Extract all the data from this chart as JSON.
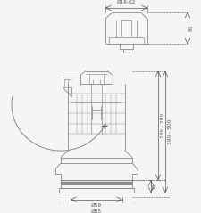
{
  "bg_color": "#f5f5f5",
  "line_color": "#888888",
  "dim_color": "#555555",
  "title": "",
  "annotations": {
    "dia_top": "Ø16-62",
    "dim_top_h": "80",
    "dim_mid_h": "236 - 280",
    "dim_total_h": "390 - 500",
    "dim_bot_h": "30",
    "dia_inner": "Ø59",
    "dia_outer": "Ø85"
  },
  "figsize": [
    2.26,
    2.39
  ],
  "dpi": 100
}
